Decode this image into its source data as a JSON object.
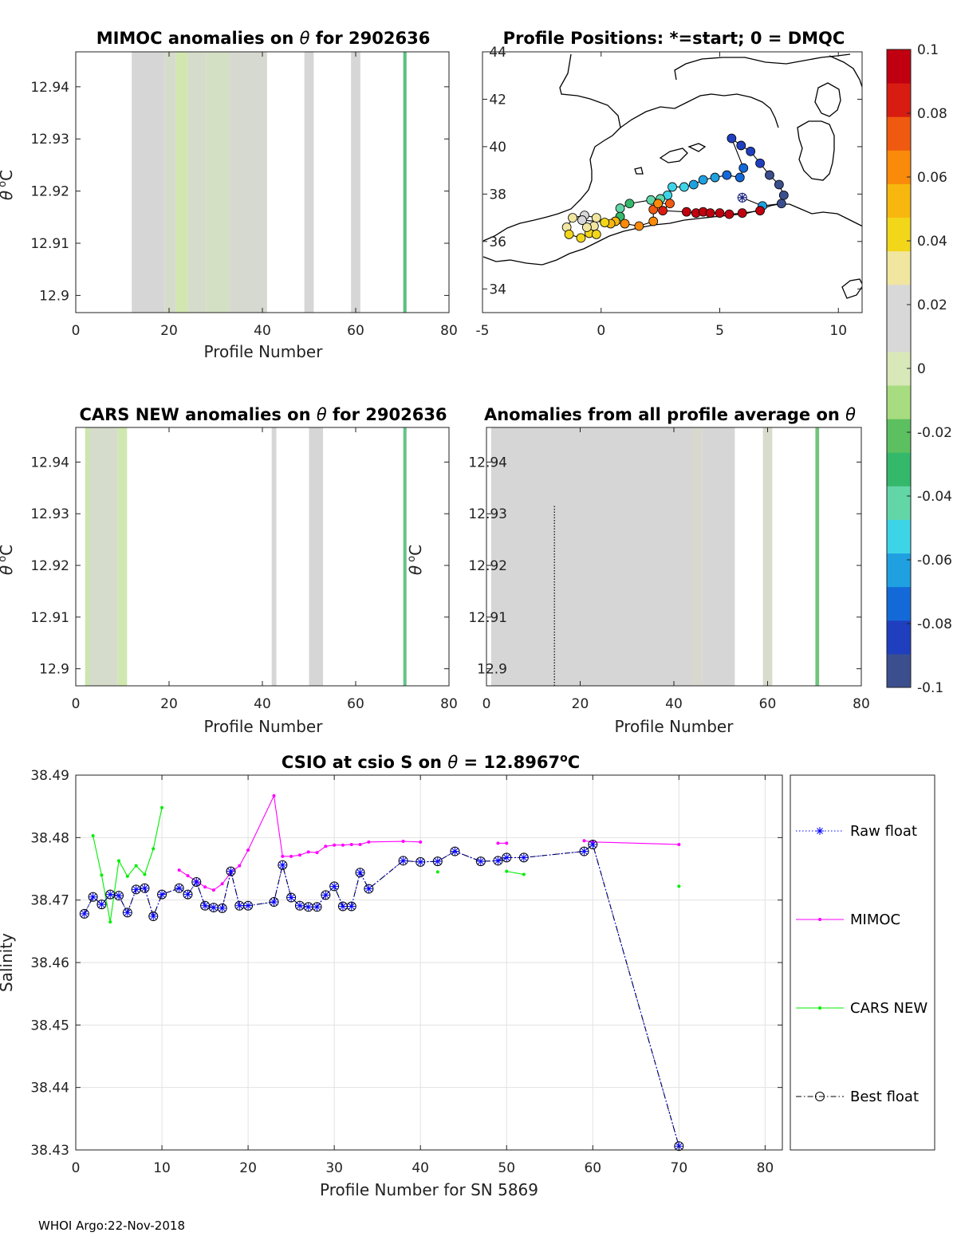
{
  "footer": "WHOI Argo:22-Nov-2018",
  "colorbar": {
    "range": [
      -0.1,
      0.1
    ],
    "ticks": [
      "0.1",
      "0.08",
      "0.06",
      "0.04",
      "0.02",
      "0",
      "-0.02",
      "-0.04",
      "-0.06",
      "-0.08",
      "-0.1"
    ],
    "tick_values": [
      0.1,
      0.08,
      0.06,
      0.04,
      0.02,
      0,
      -0.02,
      -0.04,
      -0.06,
      -0.08,
      -0.1
    ],
    "colormap": [
      "#3b4f8f",
      "#1f3fbf",
      "#1469d8",
      "#1fa0e0",
      "#3ed4e8",
      "#63d6a8",
      "#34b86a",
      "#5cc060",
      "#a8dc80",
      "#d8e8b8",
      "#d8d8d8",
      "#d8d8d8",
      "#f0e6a0",
      "#f2d61a",
      "#f7b70f",
      "#f98a0a",
      "#f05a10",
      "#d81c12",
      "#c00010"
    ]
  },
  "chart_data": [
    {
      "id": "mimoc",
      "type": "heatmap",
      "title_prefix": "MIMOC anomalies on ",
      "title_theta": "θ",
      "title_suffix": "  for 2902636",
      "xlabel": "Profile Number",
      "ylabel_theta": "θ",
      "ylabel_deg": "o",
      "ylabel_unit": "C",
      "xlim": [
        0,
        80
      ],
      "ylim": [
        12.8967,
        12.9467
      ],
      "xticks": [
        "0",
        "20",
        "40",
        "60",
        "80"
      ],
      "xtick_values": [
        0,
        20,
        40,
        60,
        80
      ],
      "yticks": [
        "12.9",
        "12.91",
        "12.92",
        "12.93",
        "12.94"
      ],
      "ytick_values": [
        12.9,
        12.91,
        12.92,
        12.93,
        12.94
      ],
      "bars": [
        {
          "x0": 12,
          "x1": 19,
          "color": "#d6d6d6"
        },
        {
          "x0": 19,
          "x1": 21.5,
          "color": "#d6dccc"
        },
        {
          "x0": 21.5,
          "x1": 24,
          "color": "#d2e6b0"
        },
        {
          "x0": 24,
          "x1": 28,
          "color": "#d6dccc"
        },
        {
          "x0": 28,
          "x1": 33,
          "color": "#d4e0c4"
        },
        {
          "x0": 33,
          "x1": 41,
          "color": "#d6d9d0"
        },
        {
          "x0": 49,
          "x1": 51,
          "color": "#d6d6d6"
        },
        {
          "x0": 59,
          "x1": 61,
          "color": "#d6d6d6"
        },
        {
          "x0": 70.2,
          "x1": 70.9,
          "color": "#5cc080"
        }
      ]
    },
    {
      "id": "positions",
      "type": "scatter",
      "title": "Profile Positions: *=start; 0 = DMQC",
      "xlim": [
        -5,
        11
      ],
      "ylim": [
        33,
        44
      ],
      "xticks": [
        "-5",
        "0",
        "5",
        "10"
      ],
      "xtick_values": [
        -5,
        0,
        5,
        10
      ],
      "yticks": [
        "34",
        "36",
        "38",
        "40",
        "42",
        "44"
      ],
      "ytick_values": [
        34,
        36,
        38,
        40,
        42,
        44
      ],
      "start": {
        "lon": 5.95,
        "lat": 37.85
      },
      "points": [
        {
          "lon": 5.95,
          "lat": 37.85,
          "v": -0.06
        },
        {
          "lon": 6.8,
          "lat": 37.5,
          "v": -0.065
        },
        {
          "lon": 7.6,
          "lat": 37.6,
          "v": -0.09
        },
        {
          "lon": 7.7,
          "lat": 37.95,
          "v": -0.095
        },
        {
          "lon": 7.5,
          "lat": 38.4,
          "v": -0.095
        },
        {
          "lon": 7.1,
          "lat": 38.8,
          "v": -0.09
        },
        {
          "lon": 6.7,
          "lat": 39.3,
          "v": -0.085
        },
        {
          "lon": 6.3,
          "lat": 39.8,
          "v": -0.08
        },
        {
          "lon": 5.9,
          "lat": 40.05,
          "v": -0.08
        },
        {
          "lon": 5.5,
          "lat": 40.35,
          "v": -0.08
        },
        {
          "lon": 6.0,
          "lat": 39.1,
          "v": -0.075
        },
        {
          "lon": 5.85,
          "lat": 38.7,
          "v": -0.075
        },
        {
          "lon": 5.3,
          "lat": 38.8,
          "v": -0.07
        },
        {
          "lon": 4.8,
          "lat": 38.7,
          "v": -0.068
        },
        {
          "lon": 4.3,
          "lat": 38.6,
          "v": -0.062
        },
        {
          "lon": 3.9,
          "lat": 38.4,
          "v": -0.06
        },
        {
          "lon": 3.5,
          "lat": 38.3,
          "v": -0.056
        },
        {
          "lon": 3.0,
          "lat": 38.3,
          "v": -0.052
        },
        {
          "lon": 2.8,
          "lat": 37.95,
          "v": -0.048
        },
        {
          "lon": 2.5,
          "lat": 37.8,
          "v": -0.045
        },
        {
          "lon": 2.1,
          "lat": 37.75,
          "v": -0.04
        },
        {
          "lon": 1.2,
          "lat": 37.6,
          "v": -0.035
        },
        {
          "lon": 0.8,
          "lat": 37.4,
          "v": -0.04
        },
        {
          "lon": 0.8,
          "lat": 37.05,
          "v": -0.035
        },
        {
          "lon": 0.6,
          "lat": 36.85,
          "v": 0.055
        },
        {
          "lon": 0.4,
          "lat": 36.75,
          "v": 0.05
        },
        {
          "lon": 0.15,
          "lat": 36.8,
          "v": 0.045
        },
        {
          "lon": -0.2,
          "lat": 37.0,
          "v": 0.035
        },
        {
          "lon": -0.7,
          "lat": 37.1,
          "v": 0.025
        },
        {
          "lon": -1.2,
          "lat": 37.0,
          "v": 0.03
        },
        {
          "lon": -1.45,
          "lat": 36.6,
          "v": 0.035
        },
        {
          "lon": -1.35,
          "lat": 36.3,
          "v": 0.04
        },
        {
          "lon": -0.85,
          "lat": 36.15,
          "v": 0.038
        },
        {
          "lon": -0.5,
          "lat": 36.35,
          "v": 0.04
        },
        {
          "lon": -0.2,
          "lat": 36.3,
          "v": 0.042
        },
        {
          "lon": -0.3,
          "lat": 36.65,
          "v": 0.03
        },
        {
          "lon": -0.6,
          "lat": 36.6,
          "v": 0.03
        },
        {
          "lon": -0.8,
          "lat": 36.9,
          "v": 0.025
        },
        {
          "lon": 1.0,
          "lat": 36.75,
          "v": 0.06
        },
        {
          "lon": 1.6,
          "lat": 36.65,
          "v": 0.062
        },
        {
          "lon": 2.2,
          "lat": 36.85,
          "v": 0.065
        },
        {
          "lon": 2.2,
          "lat": 37.35,
          "v": 0.07
        },
        {
          "lon": 2.4,
          "lat": 37.6,
          "v": 0.068
        },
        {
          "lon": 2.9,
          "lat": 37.6,
          "v": 0.072
        },
        {
          "lon": 2.6,
          "lat": 37.3,
          "v": 0.08
        },
        {
          "lon": 3.6,
          "lat": 37.25,
          "v": 0.09
        },
        {
          "lon": 4.0,
          "lat": 37.2,
          "v": 0.092
        },
        {
          "lon": 4.3,
          "lat": 37.25,
          "v": 0.094
        },
        {
          "lon": 4.6,
          "lat": 37.2,
          "v": 0.094
        },
        {
          "lon": 5.0,
          "lat": 37.2,
          "v": 0.096
        },
        {
          "lon": 5.4,
          "lat": 37.15,
          "v": 0.096
        },
        {
          "lon": 5.95,
          "lat": 37.2,
          "v": 0.1
        },
        {
          "lon": 6.7,
          "lat": 37.3,
          "v": 0.1
        }
      ]
    },
    {
      "id": "cars",
      "type": "heatmap",
      "title_prefix": "CARS NEW anomalies on ",
      "title_theta": "θ",
      "title_suffix": " for 2902636",
      "xlabel": "Profile Number",
      "ylabel_theta": "θ",
      "ylabel_deg": "o",
      "ylabel_unit": "C",
      "xlim": [
        0,
        80
      ],
      "ylim": [
        12.8967,
        12.9467
      ],
      "xticks": [
        "0",
        "20",
        "40",
        "60",
        "80"
      ],
      "xtick_values": [
        0,
        20,
        40,
        60,
        80
      ],
      "yticks": [
        "12.9",
        "12.91",
        "12.92",
        "12.93",
        "12.94"
      ],
      "ytick_values": [
        12.9,
        12.91,
        12.92,
        12.93,
        12.94
      ],
      "bars": [
        {
          "x0": 2,
          "x1": 3,
          "color": "#cce6b0"
        },
        {
          "x0": 3,
          "x1": 9,
          "color": "#d6dccc"
        },
        {
          "x0": 9,
          "x1": 11,
          "color": "#d0e8b0"
        },
        {
          "x0": 42,
          "x1": 43,
          "color": "#d6d6d6"
        },
        {
          "x0": 50,
          "x1": 53,
          "color": "#d6d6d6"
        },
        {
          "x0": 70.2,
          "x1": 70.9,
          "color": "#64c48a"
        }
      ]
    },
    {
      "id": "avg",
      "type": "heatmap",
      "title_prefix": "Anomalies from all profile average on ",
      "title_theta": "θ",
      "title_suffix": "",
      "xlabel": "Profile Number",
      "ylabel_theta": "θ",
      "ylabel_deg": "o",
      "ylabel_unit": "C",
      "xlim": [
        0,
        80
      ],
      "ylim": [
        12.8967,
        12.9467
      ],
      "xticks": [
        "0",
        "20",
        "40",
        "60",
        "80"
      ],
      "xtick_values": [
        0,
        20,
        40,
        60,
        80
      ],
      "yticks": [
        "12.9",
        "12.91",
        "12.92",
        "12.93",
        "12.94"
      ],
      "ytick_values": [
        12.9,
        12.91,
        12.92,
        12.93,
        12.94
      ],
      "bars": [
        {
          "x0": 1,
          "x1": 44,
          "color": "#d6d6d6"
        },
        {
          "x0": 44,
          "x1": 46,
          "color": "#d8d8ce"
        },
        {
          "x0": 46,
          "x1": 53,
          "color": "#d6d6d6"
        },
        {
          "x0": 59,
          "x1": 61,
          "color": "#d8dccc"
        },
        {
          "x0": 70.2,
          "x1": 71,
          "color": "#72c47c"
        }
      ],
      "dotted_line": {
        "x": 14.5,
        "y0": 12.8967,
        "y1": 12.9316
      }
    },
    {
      "id": "csio",
      "type": "line",
      "title_prefix": "CSIO at csio S on ",
      "title_theta": "θ",
      "title_suffix": " = 12.8967",
      "title_deg": "o",
      "title_unit": "C",
      "xlabel": "Profile Number for SN 5869",
      "ylabel": "Salinity",
      "xlim": [
        0,
        82
      ],
      "ylim": [
        38.43,
        38.49
      ],
      "xticks": [
        "0",
        "10",
        "20",
        "30",
        "40",
        "50",
        "60",
        "70",
        "80"
      ],
      "xtick_values": [
        0,
        10,
        20,
        30,
        40,
        50,
        60,
        70,
        80
      ],
      "yticks": [
        "38.43",
        "38.44",
        "38.45",
        "38.46",
        "38.47",
        "38.48",
        "38.49"
      ],
      "ytick_values": [
        38.43,
        38.44,
        38.45,
        38.46,
        38.47,
        38.48,
        38.49
      ],
      "grid": true,
      "legend": "right",
      "series": [
        {
          "name": "Raw float",
          "color": "#0000ff",
          "style": "dotted",
          "marker": "star",
          "x": [
            1,
            2,
            3,
            4,
            5,
            6,
            7,
            8,
            9,
            10,
            12,
            13,
            14,
            15,
            16,
            17,
            18,
            19,
            20,
            23,
            24,
            25,
            26,
            27,
            28,
            29,
            30,
            31,
            32,
            33,
            34,
            38,
            40,
            42,
            44,
            47,
            49,
            50,
            52,
            59,
            60,
            70
          ],
          "y": [
            38.4678,
            38.4705,
            38.4693,
            38.4709,
            38.4707,
            38.468,
            38.4717,
            38.4719,
            38.4674,
            38.4709,
            38.4719,
            38.4709,
            38.4729,
            38.4691,
            38.4688,
            38.4687,
            38.4746,
            38.4691,
            38.4691,
            38.4697,
            38.4756,
            38.4704,
            38.4691,
            38.4689,
            38.4689,
            38.4708,
            38.4722,
            38.469,
            38.469,
            38.4744,
            38.4718,
            38.4763,
            38.4761,
            38.4762,
            38.4778,
            38.4762,
            38.4763,
            38.4768,
            38.4768,
            38.4778,
            38.4789,
            38.4306
          ]
        },
        {
          "name": "MIMOC",
          "color": "#ff00ff",
          "style": "solid",
          "marker": "dot",
          "x": [
            12,
            13,
            14,
            15,
            16,
            17,
            18,
            19,
            20,
            23,
            24,
            25,
            26,
            27,
            28,
            29,
            30,
            31,
            32,
            33,
            34,
            38,
            40,
            null,
            49,
            50,
            null,
            59,
            60,
            70
          ],
          "y": [
            38.4748,
            38.4739,
            38.473,
            38.4721,
            38.4716,
            38.4726,
            38.4744,
            38.4755,
            38.478,
            38.4867,
            38.477,
            38.477,
            38.4772,
            38.4777,
            38.4776,
            38.4786,
            38.4788,
            38.4788,
            38.4789,
            38.4789,
            38.4793,
            38.4794,
            38.4793,
            null,
            38.4791,
            38.4791,
            null,
            38.4795,
            38.4793,
            38.4789
          ]
        },
        {
          "name": "CARS NEW",
          "color": "#00ee00",
          "style": "solid",
          "marker": "dot",
          "x": [
            2,
            3,
            4,
            5,
            6,
            7,
            8,
            9,
            10,
            null,
            42,
            null,
            50,
            52,
            null,
            70
          ],
          "y": [
            38.4803,
            38.474,
            38.4665,
            38.4763,
            38.4738,
            38.4755,
            38.4741,
            38.4782,
            38.4848,
            null,
            38.4745,
            null,
            38.4746,
            38.4741,
            null,
            38.4722
          ]
        },
        {
          "name": "Best float",
          "color": "#000000",
          "style": "dashdot",
          "marker": "circle",
          "x": [
            1,
            2,
            3,
            4,
            5,
            6,
            7,
            8,
            9,
            10,
            12,
            13,
            14,
            15,
            16,
            17,
            18,
            19,
            20,
            23,
            24,
            25,
            26,
            27,
            28,
            29,
            30,
            31,
            32,
            33,
            34,
            38,
            40,
            42,
            44,
            47,
            49,
            50,
            52,
            59,
            60,
            70
          ],
          "y": [
            38.4678,
            38.4705,
            38.4693,
            38.4709,
            38.4707,
            38.468,
            38.4717,
            38.4719,
            38.4674,
            38.4709,
            38.4719,
            38.4709,
            38.4729,
            38.4691,
            38.4688,
            38.4687,
            38.4746,
            38.4691,
            38.4691,
            38.4697,
            38.4756,
            38.4704,
            38.4691,
            38.4689,
            38.4689,
            38.4708,
            38.4722,
            38.469,
            38.469,
            38.4744,
            38.4718,
            38.4763,
            38.4761,
            38.4762,
            38.4778,
            38.4762,
            38.4763,
            38.4768,
            38.4768,
            38.4778,
            38.4789,
            38.4306
          ]
        }
      ]
    }
  ]
}
